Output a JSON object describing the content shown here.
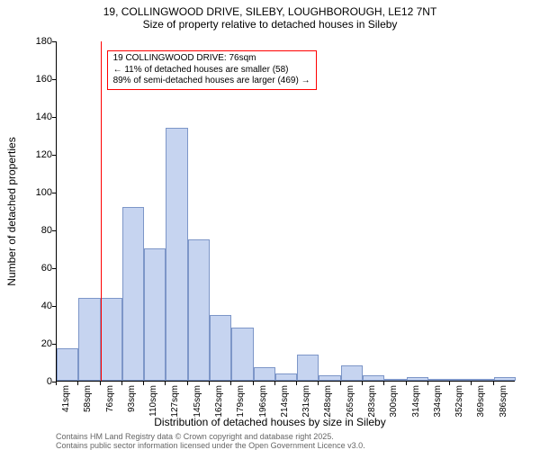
{
  "title_main": "19, COLLINGWOOD DRIVE, SILEBY, LOUGHBOROUGH, LE12 7NT",
  "title_sub": "Size of property relative to detached houses in Sileby",
  "yaxis_label": "Number of detached properties",
  "xaxis_label": "Distribution of detached houses by size in Sileby",
  "footer1": "Contains HM Land Registry data © Crown copyright and database right 2025.",
  "footer2": "Contains public sector information licensed under the Open Government Licence v3.0.",
  "chart": {
    "type": "histogram",
    "ylim": [
      0,
      180
    ],
    "ytick_step": 20,
    "x_categories": [
      "41sqm",
      "58sqm",
      "76sqm",
      "93sqm",
      "110sqm",
      "127sqm",
      "145sqm",
      "162sqm",
      "179sqm",
      "196sqm",
      "214sqm",
      "231sqm",
      "248sqm",
      "265sqm",
      "283sqm",
      "300sqm",
      "314sqm",
      "334sqm",
      "352sqm",
      "369sqm",
      "386sqm"
    ],
    "values": [
      17,
      44,
      44,
      92,
      70,
      134,
      75,
      35,
      28,
      7,
      4,
      14,
      3,
      8,
      3,
      1,
      2,
      0,
      0,
      0,
      2
    ],
    "bar_fill": "#c6d4f0",
    "bar_stroke": "#7d96c8",
    "background_color": "#ffffff",
    "marker": {
      "index_after_category": 2,
      "color": "#ff0000",
      "callout_border": "#ff0000",
      "line1": "19 COLLINGWOOD DRIVE: 76sqm",
      "line2": "← 11% of detached houses are smaller (58)",
      "line3": "89% of semi-detached houses are larger (469) →"
    }
  },
  "title_fontsize": 12,
  "label_fontsize": 12,
  "tick_fontsize": 10
}
